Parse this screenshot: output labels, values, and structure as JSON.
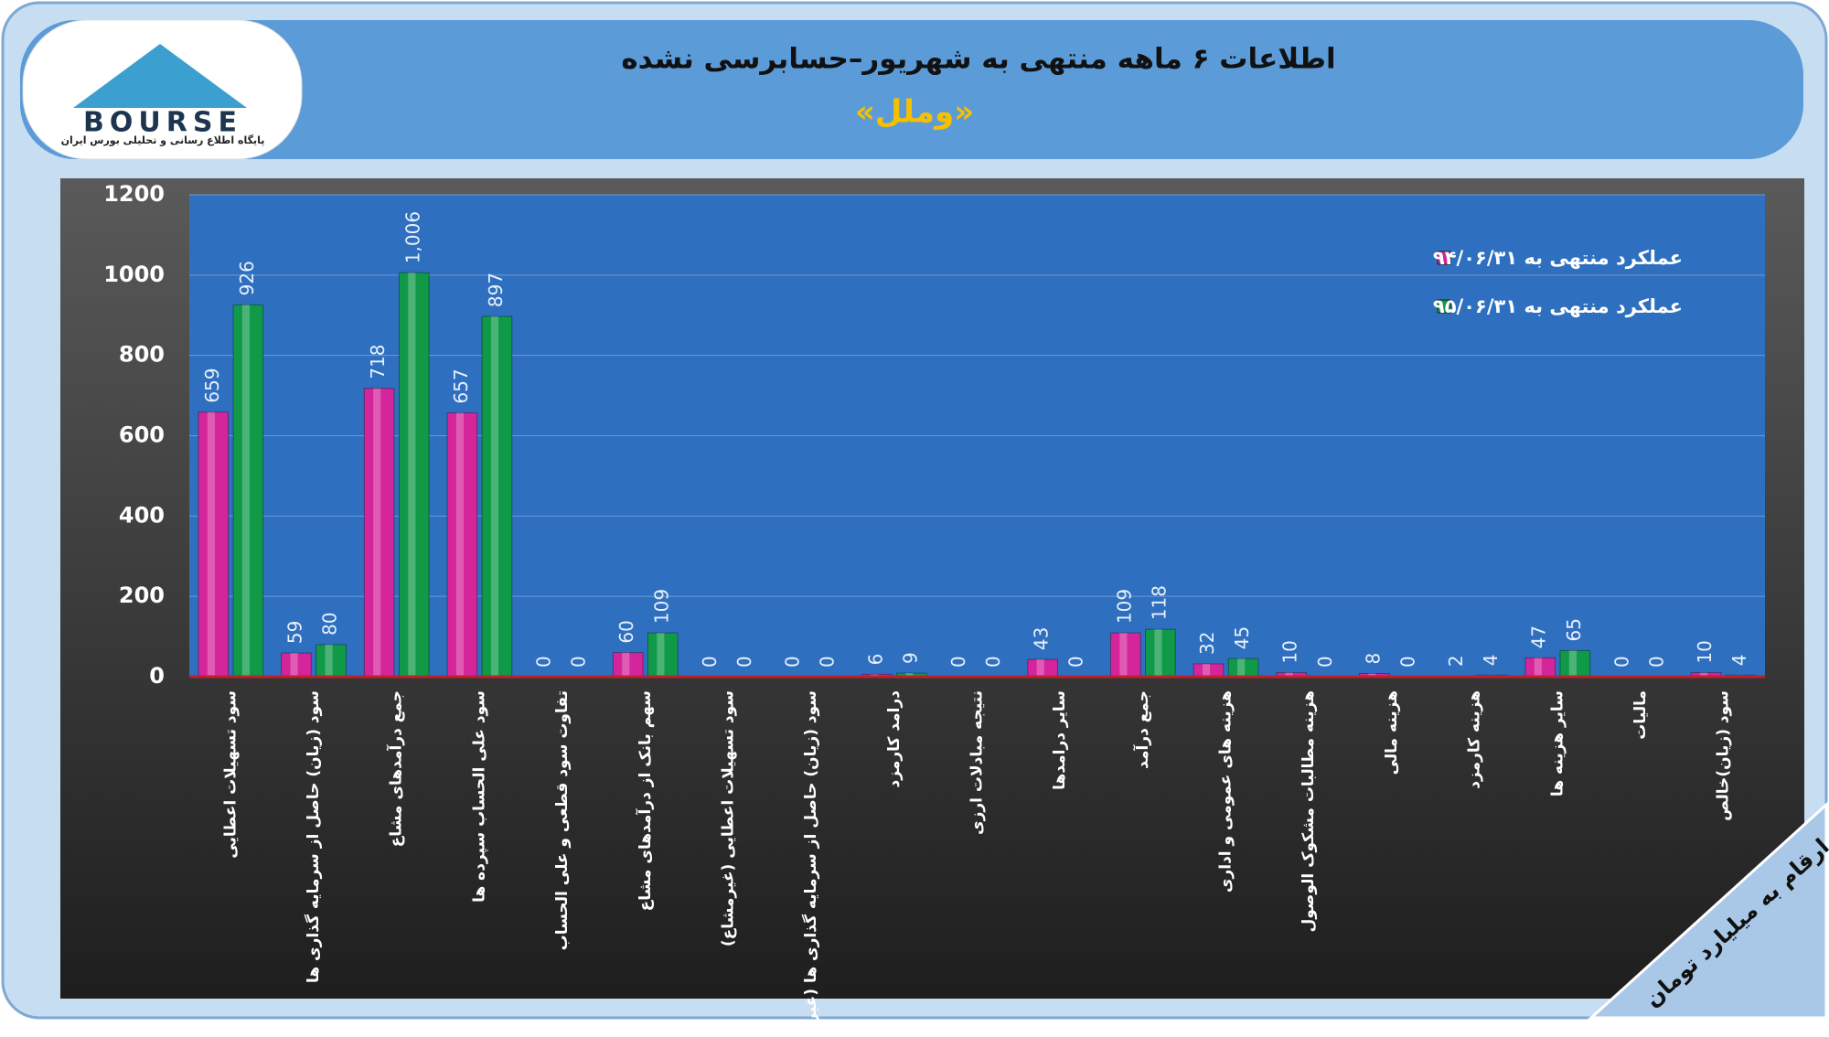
{
  "logo": {
    "name": "BOURSE",
    "tagline": "پایگاه اطلاع رسانی و تحلیلی بورس ایران"
  },
  "note": "ارقام به میلیارد تومان",
  "chart_data": {
    "type": "bar",
    "title": "اطلاعات ۶ ماهه منتهی به شهریور–حسابرسی نشده",
    "subtitle": "«وملل»",
    "categories": [
      "سود تسهیلات اعطایی",
      "سود (زیان) حاصل از سرمایه گذاری ها",
      "جمع درآمدهای مشاع",
      "سود علی الحساب سپرده ها",
      "تفاوت سود قطعی و علی الحساب",
      "سهم بانک از درآمدهای مشاع",
      "سود تسهیلات اعطایی (غیرمشاع)",
      "سود (زیان) حاصل از سرمایه گذاری ها (غیر مشاع)",
      "درامد کارمزد",
      "نتیجه مبادلات ارزی",
      "سایر درامدها",
      "جمع درآمد",
      "هزینه های عمومی و اداری",
      "هزینه مطالبات مشکوک الوصول",
      "هزینه مالی",
      "هزینه کارمزد",
      "سایر هزینه ها",
      "مالیات",
      "سود (زیان)خالص"
    ],
    "series": [
      {
        "name": "عملکرد منتهی به ۹۴/۰۶/۳۱",
        "color": "#d4259b",
        "values": [
          659,
          59,
          718,
          657,
          0,
          60,
          0,
          0,
          6,
          0,
          43,
          109,
          32,
          10,
          8,
          2,
          47,
          0,
          10
        ]
      },
      {
        "name": "عملکرد منتهی به ۹۵/۰۶/۳۱",
        "color": "#109a48",
        "values": [
          926,
          80,
          1006,
          897,
          0,
          109,
          0,
          0,
          9,
          0,
          0,
          118,
          45,
          0,
          0,
          4,
          65,
          0,
          4
        ],
        "value_labels": [
          "926",
          "80",
          "1,006",
          "897",
          "0",
          "109",
          "0",
          "0",
          "9",
          "0",
          "0",
          "118",
          "45",
          "0",
          "0",
          "4",
          "65",
          "0",
          "4"
        ]
      }
    ],
    "ylim": [
      0,
      1200
    ],
    "yticks": [
      0,
      200,
      400,
      600,
      800,
      1000,
      1200
    ],
    "grid": true,
    "legend": "top-right"
  }
}
